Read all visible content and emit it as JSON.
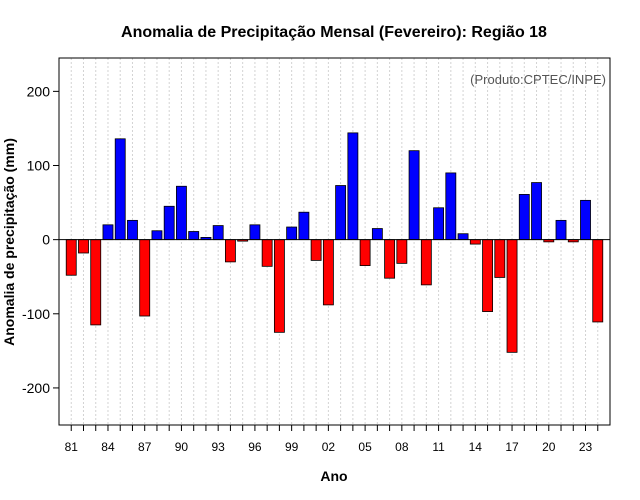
{
  "chart_data": {
    "type": "bar",
    "title": "Anomalia de Precipitação Mensal (Fevereiro): Região 18",
    "xlabel": "Ano",
    "ylabel": "Anomalia de precipitação (mm)",
    "credit": "(Produto:CPTEC/INPE)",
    "ylim": [
      -250,
      245
    ],
    "yticks": [
      -200,
      -100,
      0,
      100,
      200
    ],
    "grid": "vertical dotted",
    "years": [
      1981,
      1982,
      1983,
      1984,
      1985,
      1986,
      1987,
      1988,
      1989,
      1990,
      1991,
      1992,
      1993,
      1994,
      1995,
      1996,
      1997,
      1998,
      1999,
      2000,
      2001,
      2002,
      2003,
      2004,
      2005,
      2006,
      2007,
      2008,
      2009,
      2010,
      2011,
      2012,
      2013,
      2014,
      2015,
      2016,
      2017,
      2018,
      2019,
      2020,
      2021,
      2022,
      2023,
      2024
    ],
    "values": [
      -48,
      -18,
      -115,
      20,
      136,
      26,
      -103,
      12,
      45,
      72,
      11,
      3,
      19,
      -30,
      -2,
      20,
      -36,
      -125,
      17,
      37,
      -28,
      -88,
      73,
      144,
      -35,
      15,
      -52,
      -32,
      120,
      -61,
      43,
      90,
      8,
      -6,
      -97,
      -51,
      -152,
      61,
      77,
      -3,
      26,
      -3,
      53,
      -111
    ],
    "xtick_labels": [
      "81",
      "84",
      "87",
      "90",
      "93",
      "96",
      "99",
      "02",
      "05",
      "08",
      "11",
      "14",
      "17",
      "20",
      "23"
    ],
    "positive_color": "#0000ff",
    "negative_color": "#ff0000"
  }
}
